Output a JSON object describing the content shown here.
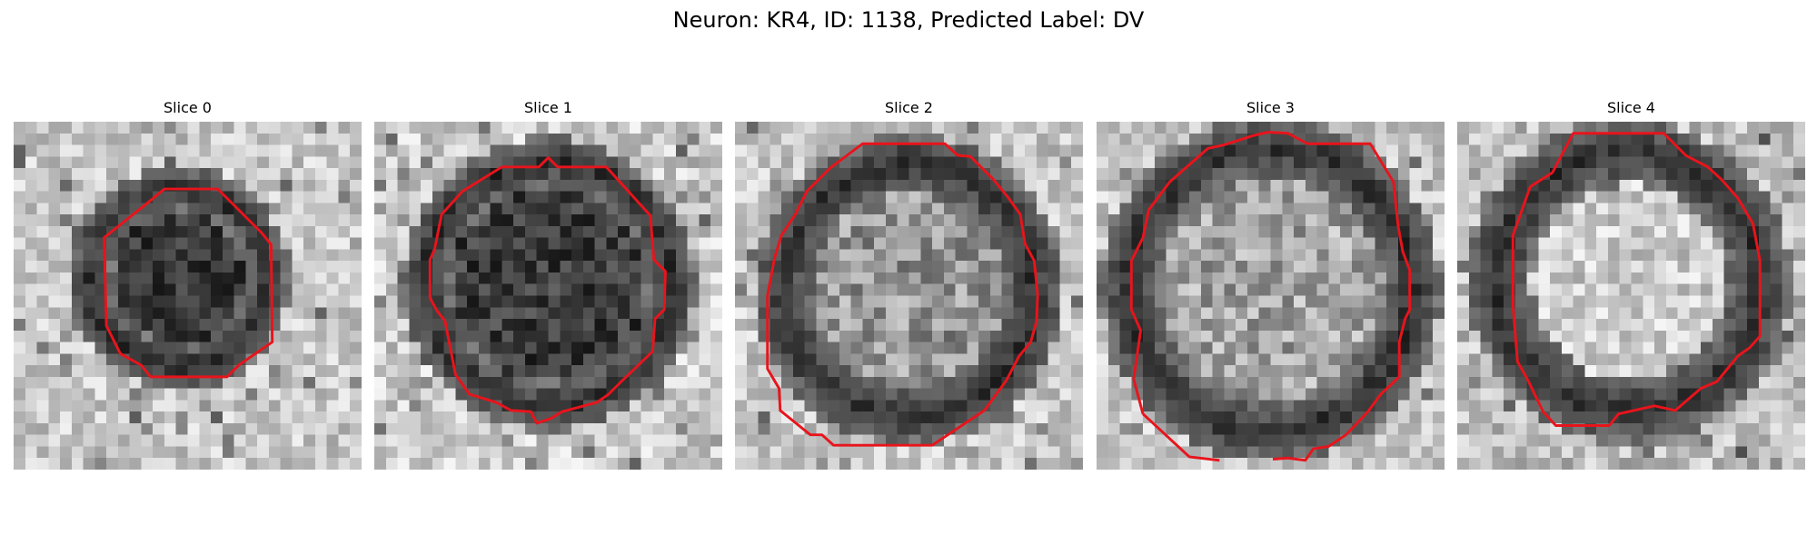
{
  "figure": {
    "title": "Neuron: KR4, ID: 1138, Predicted Label: DV"
  },
  "colors": {
    "contour": "#e8141c",
    "background": "#ffffff",
    "membrane_dark": "#2e2e2e",
    "background_light": "#d9d9d9"
  },
  "panels": [
    {
      "title": "Slice 0",
      "interior": "dark"
    },
    {
      "title": "Slice 1",
      "interior": "dark"
    },
    {
      "title": "Slice 2",
      "interior": "mottled-light"
    },
    {
      "title": "Slice 3",
      "interior": "mottled-light"
    },
    {
      "title": "Slice 4",
      "interior": "light"
    }
  ]
}
